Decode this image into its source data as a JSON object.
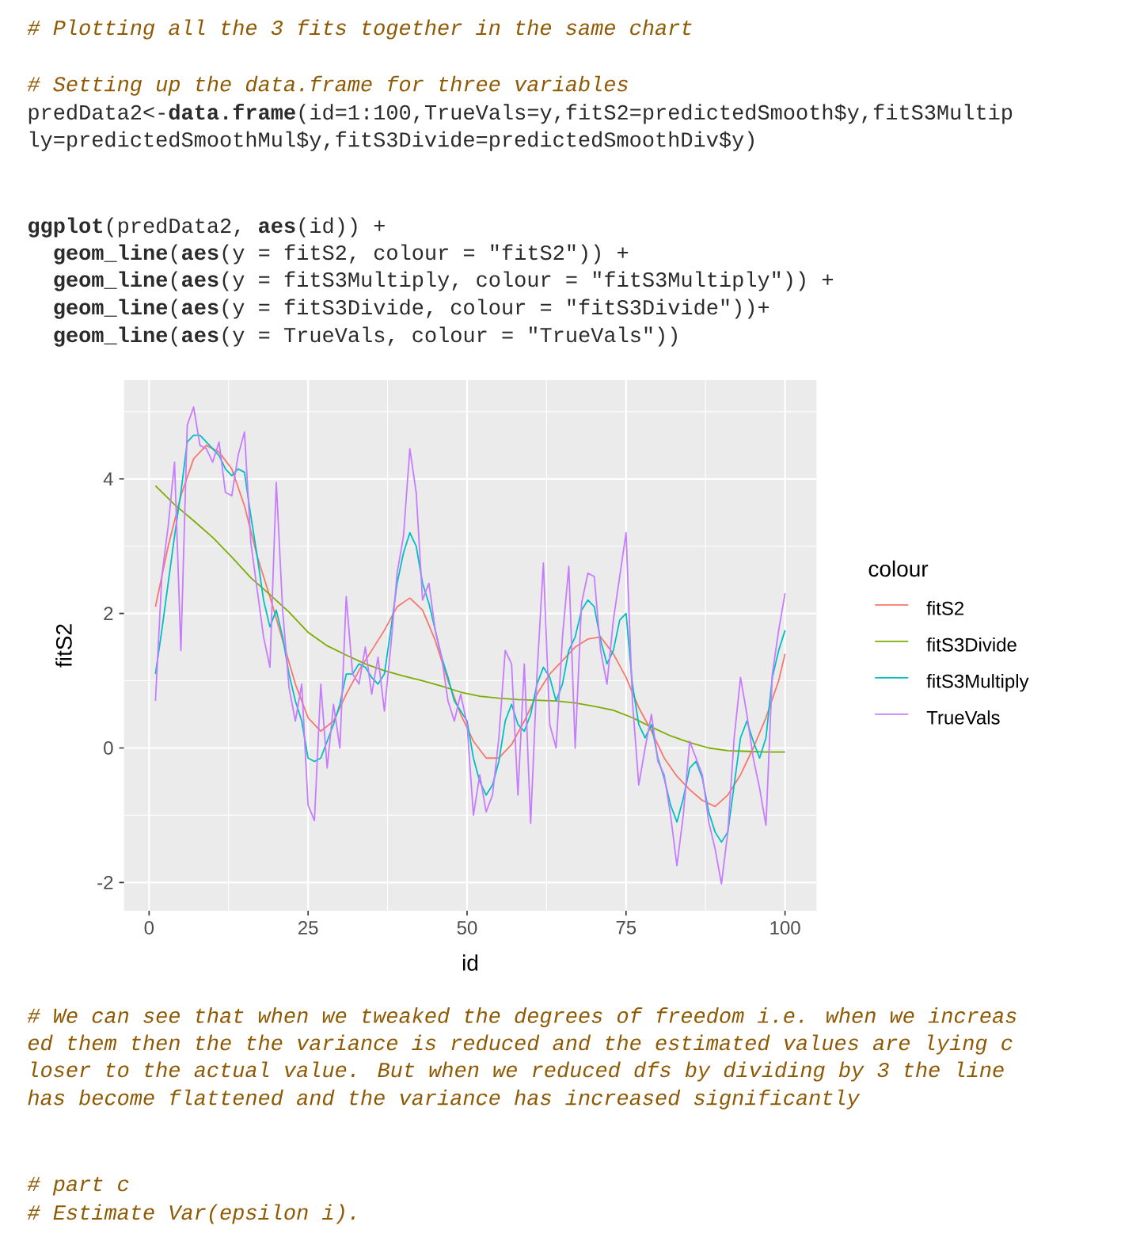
{
  "chart_data": {
    "type": "line",
    "xlabel": "id",
    "ylabel": "fitS2",
    "legend_title": "colour",
    "legend": "right",
    "grid": true,
    "xlim": [
      -3.95,
      104.95
    ],
    "ylim": [
      -2.42,
      5.47
    ],
    "xticks": [
      0,
      25,
      50,
      75,
      100
    ],
    "yticks": [
      -2,
      0,
      2,
      4
    ],
    "series": [
      {
        "name": "fitS2",
        "color": "#f8766d",
        "x": [
          1,
          3,
          5,
          7,
          9,
          11,
          13,
          15,
          17,
          19,
          21,
          23,
          25,
          27,
          29,
          31,
          33,
          35,
          37,
          39,
          41,
          43,
          45,
          47,
          49,
          51,
          53,
          55,
          57,
          59,
          61,
          63,
          65,
          67,
          69,
          71,
          73,
          75,
          77,
          79,
          81,
          83,
          85,
          87,
          89,
          91,
          93,
          95,
          97,
          99,
          100
        ],
        "values": [
          2.1,
          3.0,
          3.75,
          4.3,
          4.5,
          4.4,
          4.15,
          3.6,
          2.85,
          2.25,
          1.6,
          0.95,
          0.45,
          0.25,
          0.4,
          0.8,
          1.15,
          1.45,
          1.75,
          2.1,
          2.23,
          2.05,
          1.6,
          1.0,
          0.5,
          0.1,
          -0.15,
          -0.15,
          0.05,
          0.4,
          0.8,
          1.1,
          1.3,
          1.5,
          1.62,
          1.65,
          1.4,
          1.05,
          0.6,
          0.25,
          -0.15,
          -0.42,
          -0.62,
          -0.78,
          -0.87,
          -0.7,
          -0.4,
          0.0,
          0.45,
          1.0,
          1.4
        ]
      },
      {
        "name": "fitS3Divide",
        "color": "#7cae00",
        "x": [
          1,
          4,
          7,
          10,
          13,
          16,
          19,
          22,
          25,
          28,
          31,
          34,
          37,
          40,
          43,
          46,
          49,
          52,
          55,
          58,
          61,
          64,
          67,
          70,
          73,
          76,
          79,
          82,
          85,
          88,
          91,
          94,
          97,
          100
        ],
        "values": [
          3.9,
          3.62,
          3.38,
          3.13,
          2.84,
          2.53,
          2.28,
          2.02,
          1.72,
          1.52,
          1.38,
          1.25,
          1.15,
          1.07,
          1.0,
          0.92,
          0.83,
          0.77,
          0.74,
          0.72,
          0.71,
          0.7,
          0.67,
          0.62,
          0.56,
          0.45,
          0.31,
          0.18,
          0.08,
          0.0,
          -0.04,
          -0.05,
          -0.06,
          -0.06
        ]
      },
      {
        "name": "fitS3Multiply",
        "color": "#00bfc4",
        "x": [
          1,
          2,
          3,
          4,
          5,
          6,
          7,
          8,
          9,
          10,
          11,
          12,
          13,
          14,
          15,
          16,
          17,
          18,
          19,
          20,
          21,
          22,
          23,
          24,
          25,
          26,
          27,
          28,
          29,
          30,
          31,
          32,
          33,
          34,
          35,
          36,
          37,
          38,
          39,
          40,
          41,
          42,
          43,
          44,
          45,
          46,
          47,
          48,
          49,
          50,
          51,
          52,
          53,
          54,
          55,
          56,
          57,
          58,
          59,
          60,
          61,
          62,
          63,
          64,
          65,
          66,
          67,
          68,
          69,
          70,
          71,
          72,
          73,
          74,
          75,
          76,
          77,
          78,
          79,
          80,
          81,
          82,
          83,
          84,
          85,
          86,
          87,
          88,
          89,
          90,
          91,
          92,
          93,
          94,
          95,
          96,
          97,
          98,
          99,
          100
        ],
        "values": [
          1.1,
          1.75,
          2.45,
          3.15,
          3.8,
          4.55,
          4.65,
          4.65,
          4.55,
          4.45,
          4.35,
          4.15,
          4.05,
          4.15,
          4.1,
          3.45,
          2.85,
          2.2,
          1.8,
          2.05,
          1.65,
          1.1,
          0.7,
          0.4,
          -0.15,
          -0.2,
          -0.15,
          0.1,
          0.35,
          0.65,
          1.1,
          1.1,
          1.25,
          1.2,
          1.05,
          0.95,
          1.1,
          1.75,
          2.45,
          2.9,
          3.2,
          3.0,
          2.45,
          2.15,
          1.75,
          1.35,
          1.05,
          0.7,
          0.55,
          0.4,
          -0.15,
          -0.5,
          -0.7,
          -0.55,
          -0.2,
          0.4,
          0.65,
          0.35,
          0.25,
          0.5,
          0.95,
          1.2,
          1.05,
          0.7,
          0.95,
          1.45,
          1.65,
          2.05,
          2.2,
          2.1,
          1.6,
          1.25,
          1.45,
          1.9,
          2.0,
          0.95,
          0.35,
          0.15,
          0.35,
          -0.15,
          -0.45,
          -0.85,
          -1.1,
          -0.75,
          -0.3,
          -0.2,
          -0.45,
          -0.95,
          -1.25,
          -1.4,
          -1.25,
          -0.55,
          0.15,
          0.4,
          0.1,
          -0.15,
          0.15,
          1.05,
          1.45,
          1.75
        ]
      },
      {
        "name": "TrueVals",
        "color": "#c77cff",
        "x": [
          1,
          2,
          3,
          4,
          5,
          6,
          7,
          8,
          9,
          10,
          11,
          12,
          13,
          14,
          15,
          16,
          17,
          18,
          19,
          20,
          21,
          22,
          23,
          24,
          25,
          26,
          27,
          28,
          29,
          30,
          31,
          32,
          33,
          34,
          35,
          36,
          37,
          38,
          39,
          40,
          41,
          42,
          43,
          44,
          45,
          46,
          47,
          48,
          49,
          50,
          51,
          52,
          53,
          54,
          55,
          56,
          57,
          58,
          59,
          60,
          61,
          62,
          63,
          64,
          65,
          66,
          67,
          68,
          69,
          70,
          71,
          72,
          73,
          74,
          75,
          76,
          77,
          78,
          79,
          80,
          81,
          82,
          83,
          84,
          85,
          86,
          87,
          88,
          89,
          90,
          91,
          92,
          93,
          94,
          95,
          96,
          97,
          98,
          99,
          100
        ],
        "values": [
          0.7,
          2.55,
          3.3,
          4.25,
          1.45,
          4.8,
          5.07,
          4.5,
          4.45,
          4.25,
          4.55,
          3.8,
          3.75,
          4.35,
          4.7,
          3.05,
          2.35,
          1.65,
          1.2,
          3.95,
          2.05,
          0.9,
          0.4,
          0.95,
          -0.85,
          -1.08,
          0.95,
          -0.3,
          0.65,
          0.0,
          2.25,
          1.1,
          0.95,
          1.5,
          0.8,
          1.35,
          0.55,
          1.5,
          2.6,
          3.15,
          4.45,
          3.8,
          2.2,
          2.45,
          1.75,
          1.35,
          0.7,
          0.4,
          0.8,
          0.35,
          -1.0,
          -0.4,
          -0.95,
          -0.7,
          0.15,
          1.45,
          1.25,
          -0.7,
          1.25,
          -1.12,
          1.1,
          2.75,
          0.35,
          0.0,
          1.65,
          2.7,
          0.0,
          2.15,
          2.6,
          2.55,
          1.45,
          0.95,
          1.9,
          2.55,
          3.2,
          0.7,
          -0.55,
          0.0,
          0.5,
          -0.2,
          -0.4,
          -1.0,
          -1.75,
          -1.0,
          0.1,
          -0.15,
          -0.4,
          -1.1,
          -1.5,
          -2.02,
          -1.25,
          0.15,
          1.05,
          0.5,
          -0.15,
          -0.6,
          -1.15,
          1.1,
          1.75,
          2.3
        ]
      }
    ],
    "annotations": [
      "# Plotting all the 3 fits together in the same chart",
      "# Setting up the data.frame for three variables",
      "predData2<-**data.frame**(id=1:100,TrueVals=y,fitS2=predictedSmooth$y,fitS3Multip",
      "ly=predictedSmoothMul$y,fitS3Divide=predictedSmoothDiv$y)",
      "**ggplot**(predData2, **aes**(id)) +",
      "**geom_line**(**aes**(y = fitS2, colour = \"fitS2\")) +",
      "**geom_line**(**aes**(y = fitS3Multiply, colour = \"fitS3Multiply\")) +",
      "**geom_line**(**aes**(y = fitS3Divide, colour = \"fitS3Divide\"))+",
      "**geom_line**(**aes**(y = TrueVals, colour = \"TrueVals\"))",
      "# We can see that when we tweaked the degrees of freedom i.e. when we increas",
      "ed them then the the variance is reduced and the estimated values are lying c",
      "loser to the actual value. But when we reduced dfs by dividing by 3 the line",
      "has become flattened and the variance has increased significantly",
      "# part c",
      "# Estimate Var(epsilon i)."
    ]
  }
}
